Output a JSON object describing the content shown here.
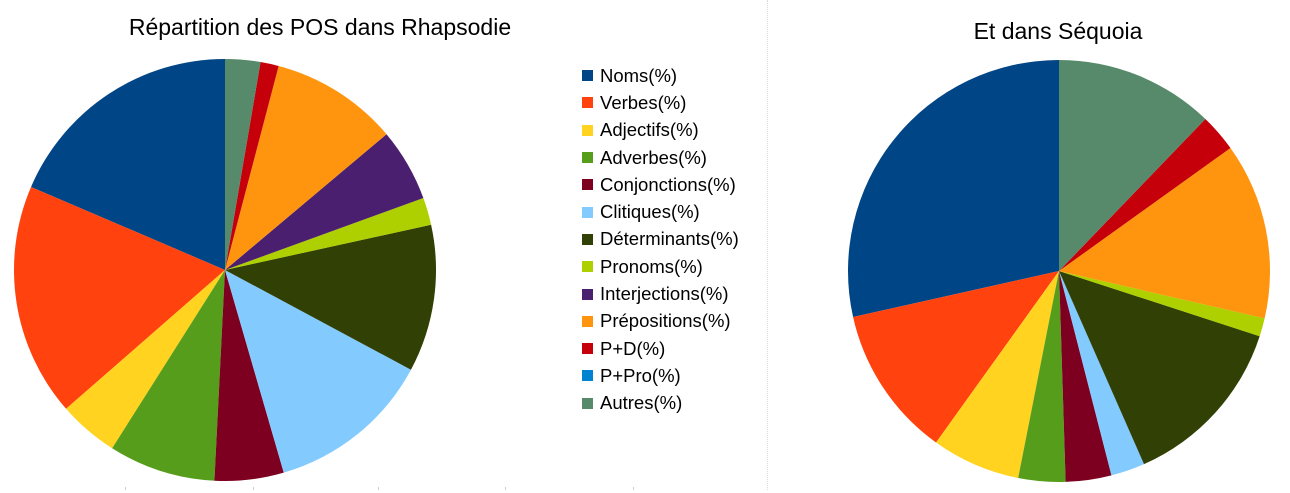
{
  "chart_data": [
    {
      "type": "pie",
      "title": "Répartition des POS dans Rhapsodie",
      "categories": [
        "Noms(%)",
        "Verbes(%)",
        "Adjectifs(%)",
        "Adverbes(%)",
        "Conjonctions(%)",
        "Clitiques(%)",
        "Déterminants(%)",
        "Pronoms(%)",
        "Interjections(%)",
        "Prépositions(%)",
        "P+D(%)",
        "P+Pro(%)",
        "Autres(%)"
      ],
      "values": [
        18.6,
        17.9,
        4.6,
        8.2,
        5.3,
        12.7,
        11.3,
        2.1,
        5.6,
        9.8,
        1.4,
        0,
        2.7
      ],
      "legend_position": "right"
    },
    {
      "type": "pie",
      "title": "Et dans Séquoia",
      "categories": [
        "Noms(%)",
        "Verbes(%)",
        "Adjectifs(%)",
        "Adverbes(%)",
        "Conjonctions(%)",
        "Clitiques(%)",
        "Déterminants(%)",
        "Pronoms(%)",
        "Interjections(%)",
        "Prépositions(%)",
        "P+D(%)",
        "P+Pro(%)",
        "Autres(%)"
      ],
      "values": [
        28.5,
        11.6,
        6.8,
        3.6,
        3.5,
        2.6,
        13.4,
        1.4,
        0,
        13.5,
        2.9,
        0,
        12.2
      ]
    }
  ],
  "legend": [
    {
      "label": "Noms(%)",
      "color": "#004586"
    },
    {
      "label": "Verbes(%)",
      "color": "#ff420e"
    },
    {
      "label": "Adjectifs(%)",
      "color": "#ffd320"
    },
    {
      "label": "Adverbes(%)",
      "color": "#579d1c"
    },
    {
      "label": "Conjonctions(%)",
      "color": "#7e0021"
    },
    {
      "label": "Clitiques(%)",
      "color": "#83caff"
    },
    {
      "label": "Déterminants(%)",
      "color": "#314004"
    },
    {
      "label": "Pronoms(%)",
      "color": "#aecf00"
    },
    {
      "label": "Interjections(%)",
      "color": "#4b1f6f"
    },
    {
      "label": "Prépositions(%)",
      "color": "#ff950e"
    },
    {
      "label": "P+D(%)",
      "color": "#c5000b"
    },
    {
      "label": "P+Pro(%)",
      "color": "#0084d1"
    },
    {
      "label": "Autres(%)",
      "color": "#568a6b"
    }
  ]
}
